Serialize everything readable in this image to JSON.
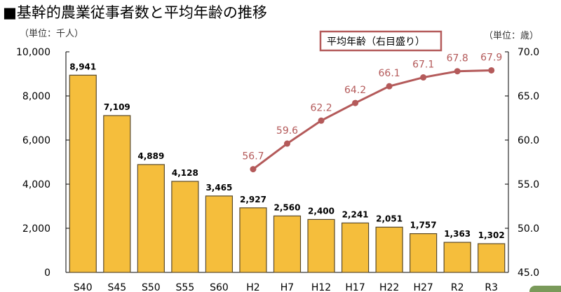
{
  "chart_data": {
    "type": "bar+line",
    "title": "■基幹的農業従事者数と平均年齢の推移",
    "left_unit": "（単位：千人）",
    "right_unit": "（単位：歳）",
    "categories": [
      "S40",
      "S45",
      "S50",
      "S55",
      "S60",
      "H2",
      "H7",
      "H12",
      "H17",
      "H22",
      "H27",
      "R2",
      "R3"
    ],
    "series": [
      {
        "name": "基幹的農業従事者数",
        "type": "bar",
        "axis": "left",
        "values": [
          8941,
          7109,
          4889,
          4128,
          3465,
          2927,
          2560,
          2400,
          2241,
          2051,
          1757,
          1363,
          1302
        ],
        "labels": [
          "8,941",
          "7,109",
          "4,889",
          "4,128",
          "3,465",
          "2,927",
          "2,560",
          "2,400",
          "2,241",
          "2,051",
          "1,757",
          "1,363",
          "1,302"
        ]
      },
      {
        "name": "平均年齢（右目盛り）",
        "type": "line",
        "axis": "right",
        "values": [
          null,
          null,
          null,
          null,
          null,
          56.7,
          59.6,
          62.2,
          64.2,
          66.1,
          67.1,
          67.8,
          67.9
        ],
        "labels": [
          "",
          "",
          "",
          "",
          "",
          "56.7",
          "59.6",
          "62.2",
          "64.2",
          "66.1",
          "67.1",
          "67.8",
          "67.9"
        ]
      }
    ],
    "ylim_left": [
      0,
      10000
    ],
    "yticks_left": [
      "0",
      "2,000",
      "4,000",
      "6,000",
      "8,000",
      "10,000"
    ],
    "ylim_right": [
      45,
      70
    ],
    "yticks_right": [
      "45.0",
      "50.0",
      "55.0",
      "60.0",
      "65.0",
      "70.0"
    ],
    "legend": "top-right",
    "grid": false,
    "colors": {
      "bar": "#f5be3c",
      "bar_edge": "#5a4a2a",
      "line": "#b45a5a"
    }
  }
}
